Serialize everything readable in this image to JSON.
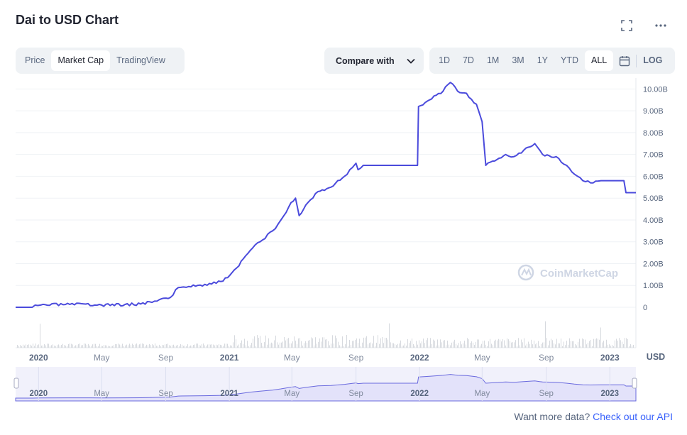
{
  "header": {
    "title": "Dai to USD Chart",
    "expand_icon": "expand-icon",
    "more_icon": "more-dots-icon"
  },
  "view_tabs": [
    {
      "label": "Price",
      "active": false
    },
    {
      "label": "Market Cap",
      "active": true
    },
    {
      "label": "TradingView",
      "active": false
    }
  ],
  "compare": {
    "label": "Compare with",
    "icon": "chevron-down-icon"
  },
  "range_tabs": [
    {
      "label": "1D",
      "active": false
    },
    {
      "label": "7D",
      "active": false
    },
    {
      "label": "1M",
      "active": false
    },
    {
      "label": "3M",
      "active": false
    },
    {
      "label": "1Y",
      "active": false
    },
    {
      "label": "YTD",
      "active": false
    },
    {
      "label": "ALL",
      "active": true
    }
  ],
  "calendar_icon": "calendar-icon",
  "log_label": "LOG",
  "currency_label": "USD",
  "watermark": "CoinMarketCap",
  "footer": {
    "text": "Want more data?",
    "link": "Check out our API"
  },
  "colors": {
    "line": "#4b4bdc",
    "navigator_fill": "#e3e2fa",
    "grid": "#eff2f5",
    "volume": "#d6d9de",
    "axis_text": "#58667e"
  },
  "chart_data": {
    "type": "line",
    "ylabel": "",
    "xlabel": "",
    "x_ticks": [
      {
        "label": "2020",
        "date": "2020-01-01",
        "bold": true
      },
      {
        "label": "May",
        "date": "2020-05-01",
        "bold": false
      },
      {
        "label": "Sep",
        "date": "2020-09-01",
        "bold": false
      },
      {
        "label": "2021",
        "date": "2021-01-01",
        "bold": true
      },
      {
        "label": "May",
        "date": "2021-05-01",
        "bold": false
      },
      {
        "label": "Sep",
        "date": "2021-09-01",
        "bold": false
      },
      {
        "label": "2022",
        "date": "2022-01-01",
        "bold": true
      },
      {
        "label": "May",
        "date": "2022-05-01",
        "bold": false
      },
      {
        "label": "Sep",
        "date": "2022-09-01",
        "bold": false
      },
      {
        "label": "2023",
        "date": "2023-01-01",
        "bold": true
      }
    ],
    "y_ticks": [
      0,
      1000000000,
      2000000000,
      3000000000,
      4000000000,
      5000000000,
      6000000000,
      7000000000,
      8000000000,
      9000000000,
      10000000000
    ],
    "y_tick_labels": [
      "0",
      "1.00B",
      "2.00B",
      "3.00B",
      "4.00B",
      "5.00B",
      "6.00B",
      "7.00B",
      "8.00B",
      "9.00B",
      "10.00B"
    ],
    "xlim": [
      "2019-11-18",
      "2023-02-20"
    ],
    "ylim": [
      0,
      10500000000
    ],
    "series": [
      {
        "values": [
          [
            "2019-11-18",
            0.0
          ],
          [
            "2019-12-20",
            0.0
          ],
          [
            "2020-01-05",
            0.1
          ],
          [
            "2020-03-01",
            0.13
          ],
          [
            "2020-05-01",
            0.1
          ],
          [
            "2020-06-15",
            0.13
          ],
          [
            "2020-07-15",
            0.15
          ],
          [
            "2020-08-01",
            0.25
          ],
          [
            "2020-08-20",
            0.35
          ],
          [
            "2020-09-10",
            0.45
          ],
          [
            "2020-09-25",
            0.9
          ],
          [
            "2020-10-15",
            0.95
          ],
          [
            "2020-11-15",
            1.05
          ],
          [
            "2020-12-20",
            1.2
          ],
          [
            "2021-01-15",
            1.8
          ],
          [
            "2021-02-10",
            2.6
          ],
          [
            "2021-03-01",
            3.0
          ],
          [
            "2021-03-25",
            3.5
          ],
          [
            "2021-04-10",
            4.0
          ],
          [
            "2021-04-25",
            4.6
          ],
          [
            "2021-05-08",
            5.0
          ],
          [
            "2021-05-15",
            4.2
          ],
          [
            "2021-06-01",
            4.8
          ],
          [
            "2021-06-20",
            5.3
          ],
          [
            "2021-07-15",
            5.5
          ],
          [
            "2021-08-10",
            6.0
          ],
          [
            "2021-08-25",
            6.4
          ],
          [
            "2021-09-01",
            6.6
          ],
          [
            "2021-09-05",
            6.3
          ],
          [
            "2021-09-15",
            6.5
          ],
          [
            "2021-10-15",
            6.5
          ],
          [
            "2021-11-20",
            6.5
          ],
          [
            "2021-12-28",
            6.5
          ],
          [
            "2021-12-30",
            9.2
          ],
          [
            "2022-01-20",
            9.5
          ],
          [
            "2022-02-15",
            9.9
          ],
          [
            "2022-03-01",
            10.3
          ],
          [
            "2022-03-15",
            9.9
          ],
          [
            "2022-04-01",
            9.8
          ],
          [
            "2022-04-20",
            9.3
          ],
          [
            "2022-05-01",
            8.5
          ],
          [
            "2022-05-08",
            6.5
          ],
          [
            "2022-05-25",
            6.7
          ],
          [
            "2022-06-15",
            7.0
          ],
          [
            "2022-07-01",
            6.9
          ],
          [
            "2022-07-20",
            7.2
          ],
          [
            "2022-08-10",
            7.5
          ],
          [
            "2022-08-25",
            7.0
          ],
          [
            "2022-09-20",
            6.9
          ],
          [
            "2022-10-10",
            6.5
          ],
          [
            "2022-10-25",
            6.1
          ],
          [
            "2022-11-10",
            5.8
          ],
          [
            "2022-11-25",
            5.7
          ],
          [
            "2022-12-15",
            5.8
          ],
          [
            "2023-01-10",
            5.8
          ],
          [
            "2023-01-28",
            5.8
          ],
          [
            "2023-02-01",
            5.25
          ],
          [
            "2023-02-20",
            5.25
          ]
        ]
      }
    ],
    "grid": true,
    "navigator": true
  }
}
